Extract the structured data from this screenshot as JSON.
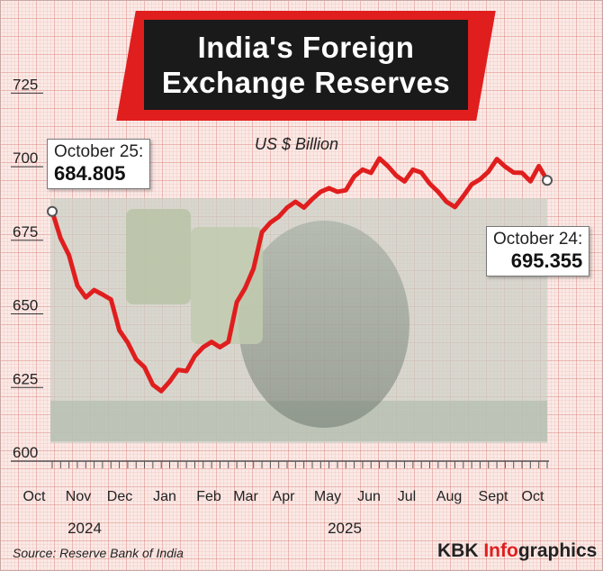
{
  "title_line1": "India's Foreign",
  "title_line2": "Exchange Reserves",
  "subtitle": "US $ Billion",
  "callout_start": {
    "label": "October 25:",
    "value": "684.805"
  },
  "callout_end": {
    "label": "October 24:",
    "value": "695.355"
  },
  "source": "Source: Reserve Bank of India",
  "brand": {
    "prefix": "KBK ",
    "highlight": "Info",
    "suffix": "graphics"
  },
  "colors": {
    "line": "#e01e1e",
    "title_bg": "#1a1a1a",
    "accent": "#e01e1e",
    "background": "#fbe9e6"
  },
  "chart_data": {
    "type": "line",
    "title": "India's Foreign Exchange Reserves",
    "subtitle": "US $ Billion",
    "ylim": [
      600,
      730
    ],
    "yticks": [
      600,
      625,
      650,
      675,
      700,
      725
    ],
    "month_labels": [
      "Oct",
      "Nov",
      "Dec",
      "Jan",
      "Feb",
      "Mar",
      "Apr",
      "May",
      "Jun",
      "Jul",
      "Aug",
      "Sept",
      "Oct"
    ],
    "year_labels": [
      "2024",
      "2025"
    ],
    "series": [
      {
        "values": [
          684.805,
          675.7,
          670.0,
          659.6,
          655.6,
          658.1,
          656.6,
          654.9,
          644.4,
          640.3,
          634.6,
          631.9,
          625.9,
          623.8,
          627.0,
          631.0,
          630.6,
          635.7,
          638.7,
          640.5,
          638.7,
          640.5,
          654.0,
          658.8,
          665.4,
          677.8,
          681.0,
          683.0,
          686.1,
          688.1,
          686.1,
          689.0,
          691.5,
          692.7,
          691.5,
          692.0,
          696.7,
          699.0,
          697.9,
          702.8,
          700.2,
          697.0,
          695.0,
          699.0,
          698.0,
          694.2,
          691.5,
          688.1,
          686.3,
          690.0,
          694.0,
          695.7,
          698.3,
          702.6,
          700.0,
          698.0,
          697.9,
          695.0,
          700.2,
          695.355
        ]
      }
    ]
  }
}
